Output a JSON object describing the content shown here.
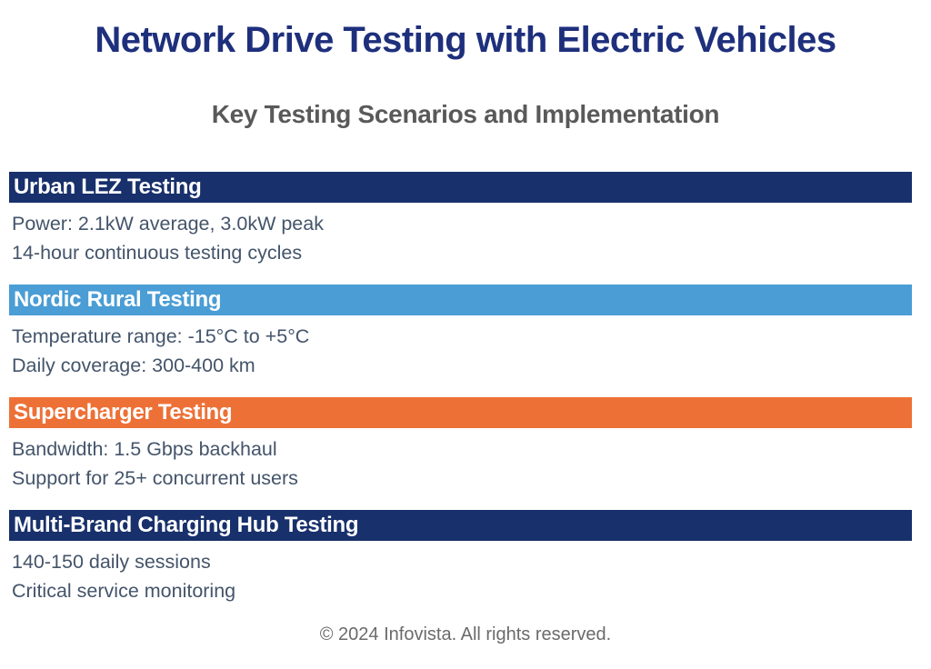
{
  "page": {
    "title": "Network Drive Testing with Electric Vehicles",
    "subtitle": "Key Testing Scenarios and Implementation",
    "footer": "© 2024 Infovista. All rights reserved."
  },
  "colors": {
    "title_navy": "#1e2f7c",
    "subtitle_gray": "#595959",
    "body_text": "#44546a",
    "footer_gray": "#6b6b6b",
    "bar_navy": "#18306b",
    "bar_light_blue": "#4a9dd5",
    "bar_orange": "#ed7137"
  },
  "sections": [
    {
      "heading": "Urban LEZ Testing",
      "color": "#18306b",
      "lines": [
        "Power: 2.1kW average, 3.0kW peak",
        "14-hour continuous testing cycles"
      ]
    },
    {
      "heading": "Nordic Rural Testing",
      "color": "#4a9dd5",
      "lines": [
        "Temperature range: -15°C to +5°C",
        "Daily coverage: 300-400 km"
      ]
    },
    {
      "heading": "Supercharger Testing",
      "color": "#ed7137",
      "lines": [
        "Bandwidth: 1.5 Gbps backhaul",
        "Support for 25+ concurrent users"
      ]
    },
    {
      "heading": "Multi-Brand Charging Hub Testing",
      "color": "#18306b",
      "lines": [
        "140-150 daily sessions",
        "Critical service monitoring"
      ]
    }
  ]
}
